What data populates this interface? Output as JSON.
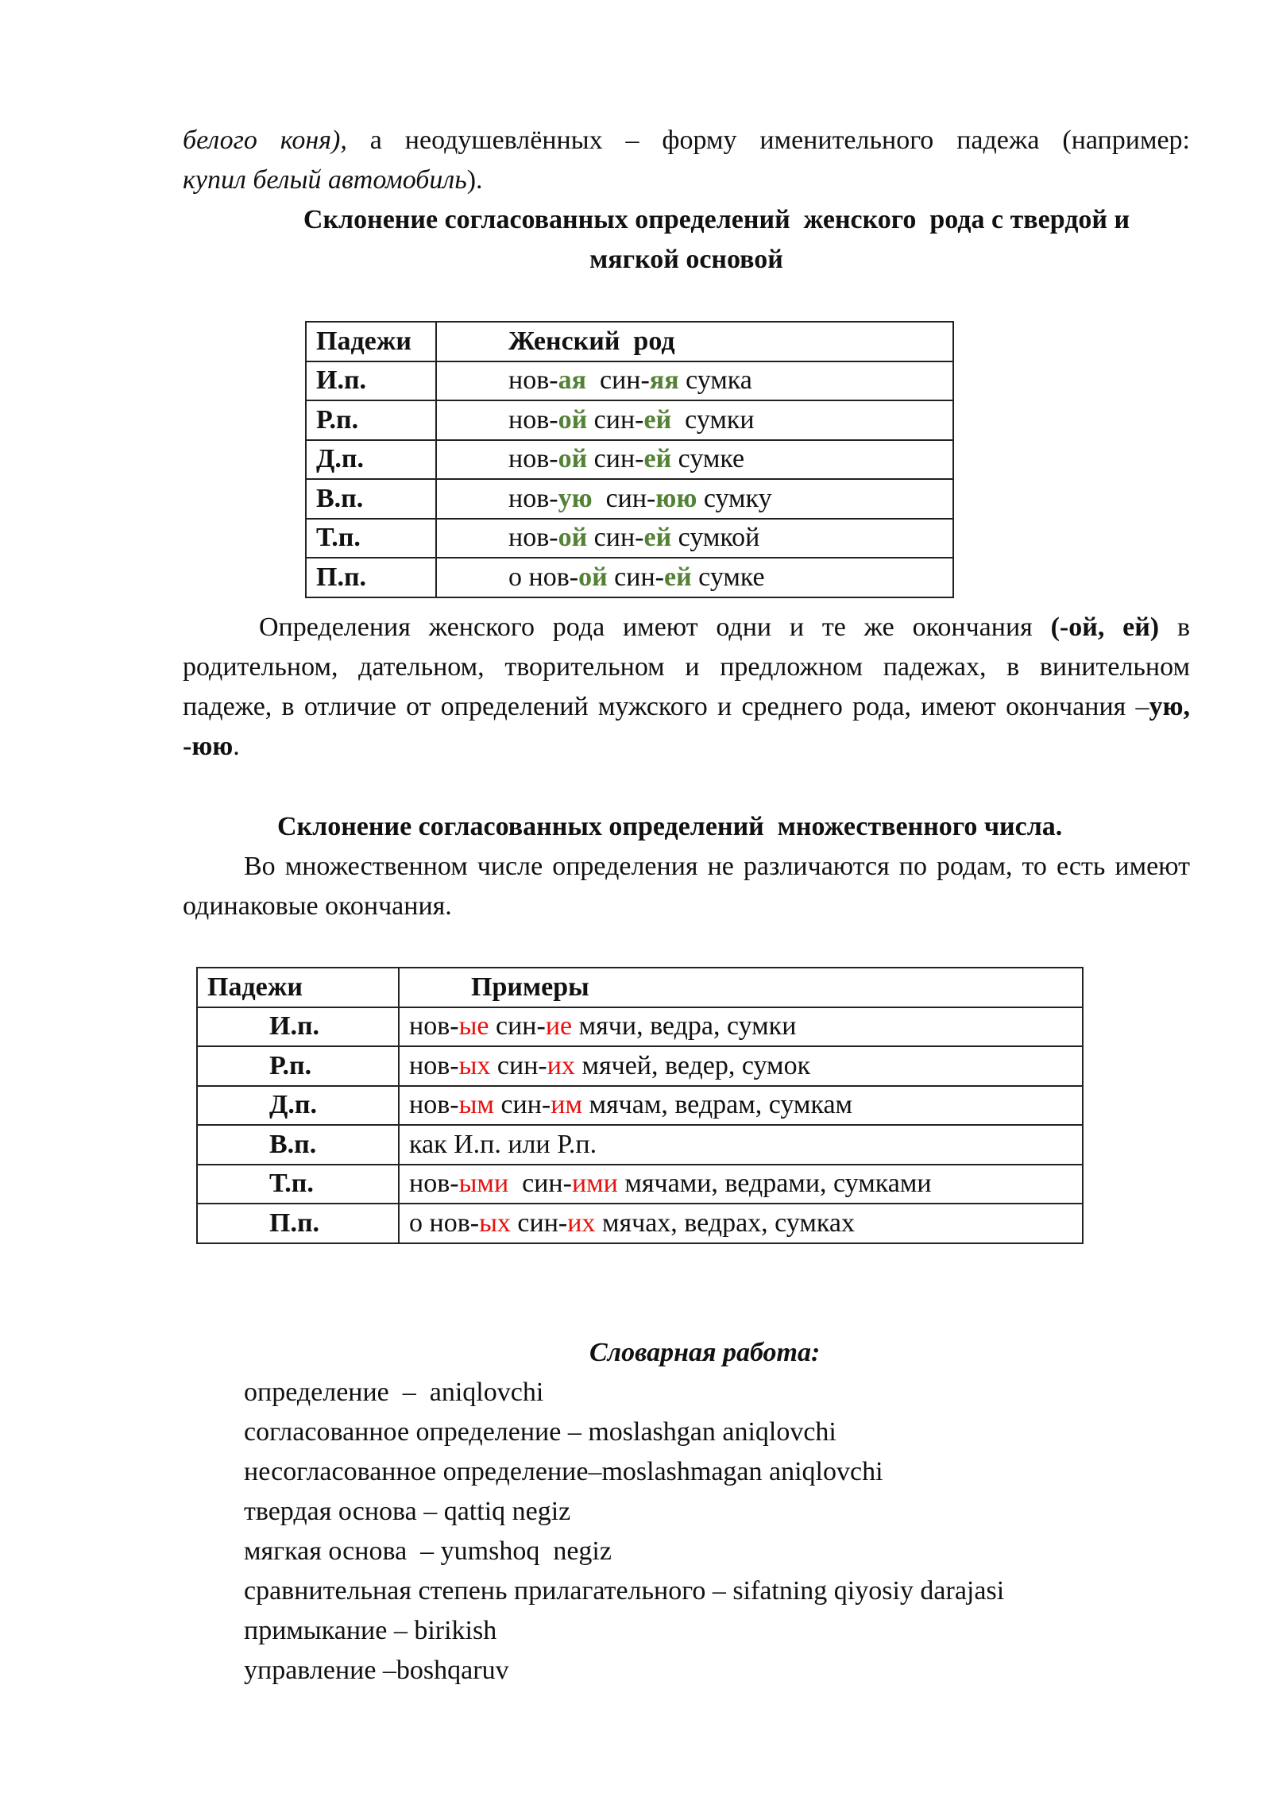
{
  "intro": {
    "italic1": "белого коня),",
    "text1": " а неодушевлённых – форму именительного падежа (например:",
    "italic2": "купил белый автомобиль",
    "text2": ")."
  },
  "heading1": {
    "line1": "Склонение согласованных определений  женского  рода с твердой и",
    "line2": "мягкой основой"
  },
  "table1": {
    "headers": [
      "Падежи",
      "Женский  род"
    ],
    "rows": [
      {
        "case": "И.п.",
        "parts": [
          [
            "нов-",
            ""
          ],
          [
            "ая",
            "g"
          ],
          [
            "  син-",
            ""
          ],
          [
            "яя",
            "g"
          ],
          [
            " сумка",
            ""
          ]
        ]
      },
      {
        "case": "Р.п.",
        "parts": [
          [
            "нов-",
            ""
          ],
          [
            "ой",
            "g"
          ],
          [
            " син-",
            ""
          ],
          [
            "ей",
            "g"
          ],
          [
            "  сумки",
            ""
          ]
        ]
      },
      {
        "case": "Д.п.",
        "parts": [
          [
            "нов-",
            ""
          ],
          [
            "ой",
            "g"
          ],
          [
            " син-",
            ""
          ],
          [
            "ей",
            "g"
          ],
          [
            " сумке",
            ""
          ]
        ]
      },
      {
        "case": "В.п.",
        "parts": [
          [
            "нов-",
            ""
          ],
          [
            "ую",
            "g"
          ],
          [
            "  син-",
            ""
          ],
          [
            "юю",
            "g"
          ],
          [
            " сумку",
            ""
          ]
        ]
      },
      {
        "case": "Т.п.",
        "parts": [
          [
            "нов-",
            ""
          ],
          [
            "ой",
            "g"
          ],
          [
            " син-",
            ""
          ],
          [
            "ей",
            "g"
          ],
          [
            " сумкой",
            ""
          ]
        ]
      },
      {
        "case": "П.п.",
        "parts": [
          [
            "о нов-",
            ""
          ],
          [
            "ой",
            "g"
          ],
          [
            " син-",
            ""
          ],
          [
            "ей",
            "g"
          ],
          [
            " сумке",
            ""
          ]
        ]
      }
    ]
  },
  "para2": {
    "t1": "Определения женского рода имеют одни и те же окончания ",
    "b1": "(-ой, ей)",
    "t2": " в родительном, дательном, творительном   и предложном падежах, в винительном падеже, в отличие от определений мужского и среднего рода, имеют окончания –",
    "b2": "ую, -юю",
    "t3": "."
  },
  "heading2": "Склонение согласованных определений  множественного числа.",
  "para3": "Во множественном числе определения не различаются по родам, то есть имеют одинаковые окончания.",
  "table2": {
    "headers": [
      "Падежи",
      "Примеры"
    ],
    "rows": [
      {
        "case": "И.п.",
        "parts": [
          [
            "нов-",
            ""
          ],
          [
            "ые",
            "r"
          ],
          [
            " син-",
            ""
          ],
          [
            "ие",
            "r"
          ],
          [
            " мячи, ведра, сумки",
            ""
          ]
        ]
      },
      {
        "case": "Р.п.",
        "parts": [
          [
            "нов-",
            ""
          ],
          [
            "ых",
            "r"
          ],
          [
            " син-",
            ""
          ],
          [
            "их",
            "r"
          ],
          [
            " мячей, ведер, сумок",
            ""
          ]
        ]
      },
      {
        "case": "Д.п.",
        "parts": [
          [
            "нов-",
            ""
          ],
          [
            "ым",
            "r"
          ],
          [
            " син-",
            ""
          ],
          [
            "им",
            "r"
          ],
          [
            " мячам, ведрам, сумкам",
            ""
          ]
        ]
      },
      {
        "case": "В.п.",
        "parts": [
          [
            "как И.п. или Р.п.",
            ""
          ]
        ]
      },
      {
        "case": "Т.п.",
        "parts": [
          [
            "нов-",
            ""
          ],
          [
            "ыми",
            "r"
          ],
          [
            "  син-",
            ""
          ],
          [
            "ими",
            "r"
          ],
          [
            " мячами, ведрами, сумками",
            ""
          ]
        ]
      },
      {
        "case": "П.п.",
        "parts": [
          [
            "о нов-",
            ""
          ],
          [
            "ых",
            "r"
          ],
          [
            " син-",
            ""
          ],
          [
            "их",
            "r"
          ],
          [
            " мячах, ведрах, сумках",
            ""
          ]
        ]
      }
    ]
  },
  "vocab": {
    "title": "Словарная работа:",
    "items": [
      "определение  –  aniqlovchi",
      "согласованное определение – moslashgan aniqlovchi",
      "несогласованное определение–moslashmagan aniqlovchi",
      "твердая основа – qattiq negiz",
      "мягкая основа  – yumshoq  negiz",
      "сравнительная степень прилагательного – sifatning qiyosiy darajasi",
      "примыкание – birikish",
      "управление –boshqaruv"
    ]
  },
  "colors": {
    "green": "#538135",
    "red": "#e8120f"
  }
}
